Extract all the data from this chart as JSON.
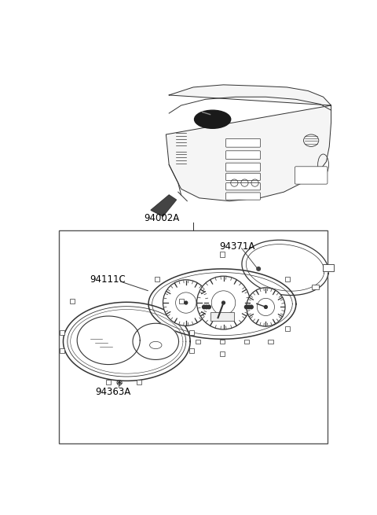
{
  "bg_color": "#ffffff",
  "line_color": "#333333",
  "fig_width": 4.8,
  "fig_height": 6.55,
  "dpi": 100,
  "label_94002A": "94002A",
  "label_94371A": "94371A",
  "label_94111C": "94111C",
  "label_94363A": "94363A"
}
